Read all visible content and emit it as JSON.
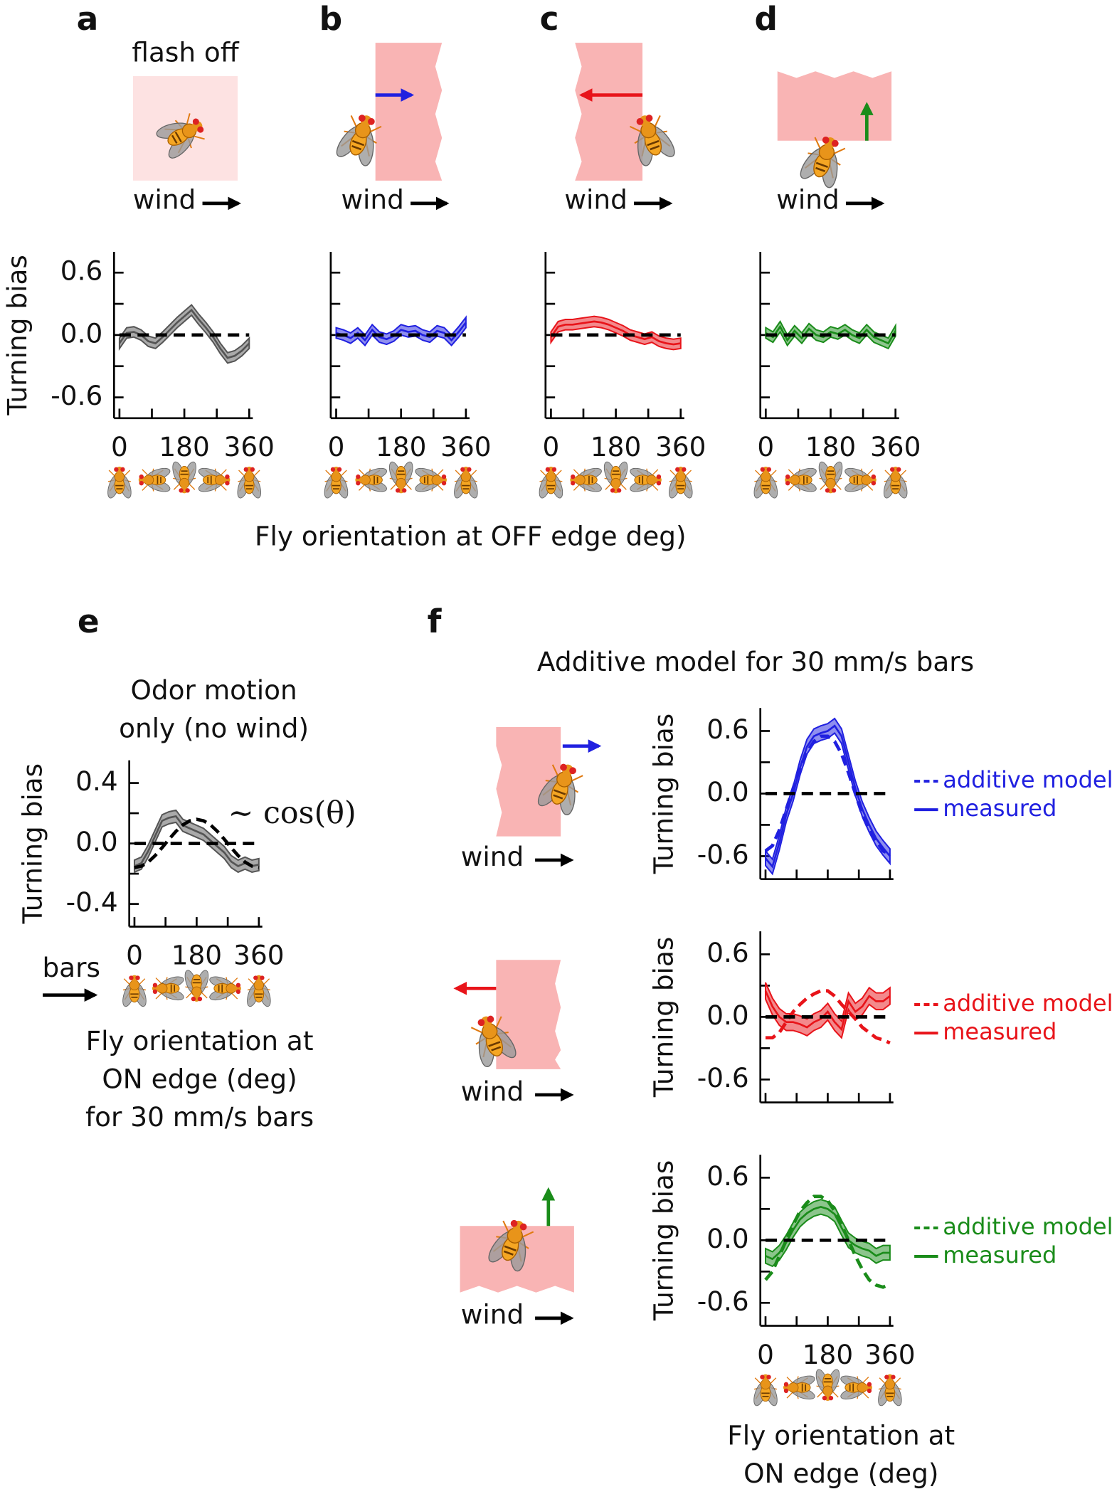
{
  "figure_xlabel": "Fly orientation at OFF edge deg)",
  "chart_data": [
    {
      "type": "line",
      "panel": "a",
      "stimulus_label": "flash off",
      "wind_label": "wind",
      "ylabel": "Turning bias",
      "x": [
        0,
        20,
        40,
        60,
        80,
        100,
        120,
        140,
        160,
        180,
        200,
        220,
        240,
        260,
        280,
        300,
        320,
        340,
        360
      ],
      "xlim": [
        -15,
        370
      ],
      "ylim": [
        -0.8,
        0.8
      ],
      "xticks": [
        0,
        180,
        360
      ],
      "xminor": [
        90,
        270
      ],
      "yticks": [
        0.6,
        {
          "value": 0,
          "label": "0.0"
        },
        -0.6
      ],
      "yminor": [
        0.3,
        -0.3
      ],
      "reference_line": 0,
      "icons": true,
      "series": [
        {
          "color": "#555555",
          "linestyle": "solid",
          "error": 0.05,
          "values": [
            -0.08,
            0.02,
            0.03,
            0.0,
            -0.06,
            -0.08,
            -0.02,
            0.05,
            0.12,
            0.18,
            0.24,
            0.15,
            0.07,
            -0.02,
            -0.13,
            -0.22,
            -0.2,
            -0.15,
            -0.08
          ]
        }
      ]
    },
    {
      "type": "line",
      "panel": "b",
      "wind_label": "wind",
      "x": [
        0,
        20,
        40,
        60,
        80,
        100,
        120,
        140,
        160,
        180,
        200,
        220,
        240,
        260,
        280,
        300,
        320,
        340,
        360
      ],
      "xlim": [
        -15,
        370
      ],
      "ylim": [
        -0.8,
        0.8
      ],
      "xticks": [
        0,
        180,
        360
      ],
      "xminor": [
        90,
        270
      ],
      "yticks": [
        0.6,
        {
          "value": 0,
          "label": "0.0"
        },
        -0.6
      ],
      "yminor": [
        0.3,
        -0.3
      ],
      "ytick_labels": false,
      "reference_line": 0,
      "icons": true,
      "series": [
        {
          "color": "#2020e0",
          "linestyle": "solid",
          "error": 0.05,
          "values": [
            0.02,
            0.0,
            -0.03,
            0.02,
            -0.05,
            0.05,
            -0.02,
            -0.04,
            -0.01,
            0.05,
            0.03,
            0.04,
            0.0,
            -0.02,
            0.04,
            0.02,
            -0.05,
            0.03,
            0.12
          ]
        }
      ]
    },
    {
      "type": "line",
      "panel": "c",
      "wind_label": "wind",
      "x": [
        0,
        20,
        40,
        60,
        80,
        100,
        120,
        140,
        160,
        180,
        200,
        220,
        240,
        260,
        280,
        300,
        320,
        340,
        360
      ],
      "xlim": [
        -15,
        370
      ],
      "ylim": [
        -0.8,
        0.8
      ],
      "xticks": [
        0,
        180,
        360
      ],
      "xminor": [
        90,
        270
      ],
      "yticks": [
        0.6,
        {
          "value": 0,
          "label": "0.0"
        },
        -0.6
      ],
      "yminor": [
        0.3,
        -0.3
      ],
      "ytick_labels": false,
      "reference_line": 0,
      "icons": true,
      "series": [
        {
          "color": "#e8141a",
          "linestyle": "solid",
          "error": 0.05,
          "values": [
            -0.02,
            0.08,
            0.1,
            0.1,
            0.11,
            0.12,
            0.13,
            0.12,
            0.1,
            0.07,
            0.04,
            0.0,
            -0.02,
            -0.04,
            -0.02,
            -0.06,
            -0.08,
            -0.09,
            -0.08
          ]
        }
      ]
    },
    {
      "type": "line",
      "panel": "d",
      "wind_label": "wind",
      "x": [
        0,
        20,
        40,
        60,
        80,
        100,
        120,
        140,
        160,
        180,
        200,
        220,
        240,
        260,
        280,
        300,
        320,
        340,
        360
      ],
      "xlim": [
        -15,
        370
      ],
      "ylim": [
        -0.8,
        0.8
      ],
      "xticks": [
        0,
        180,
        360
      ],
      "xminor": [
        90,
        270
      ],
      "yticks": [
        0.6,
        {
          "value": 0,
          "label": "0.0"
        },
        -0.6
      ],
      "yminor": [
        0.3,
        -0.3
      ],
      "ytick_labels": false,
      "reference_line": 0,
      "icons": true,
      "series": [
        {
          "color": "#1a8c1a",
          "linestyle": "solid",
          "error": 0.05,
          "values": [
            0.02,
            -0.02,
            0.08,
            -0.05,
            0.04,
            -0.03,
            0.06,
            0.0,
            -0.02,
            0.03,
            0.01,
            0.05,
            0.0,
            -0.03,
            0.05,
            -0.02,
            -0.05,
            -0.08,
            0.04
          ]
        }
      ]
    },
    {
      "type": "line",
      "panel": "e",
      "title": [
        "Odor motion",
        "only (no wind)"
      ],
      "annotation": "∼ cos(θ)",
      "stimulus_label": "bars",
      "ylabel": "Turning bias",
      "xlabel": [
        "Fly orientation at",
        "ON edge (deg)",
        "for 30 mm/s bars"
      ],
      "x": [
        0,
        20,
        40,
        60,
        80,
        100,
        120,
        140,
        160,
        180,
        200,
        220,
        240,
        260,
        280,
        300,
        320,
        340,
        360
      ],
      "xlim": [
        -15,
        370
      ],
      "ylim": [
        -0.55,
        0.55
      ],
      "xticks": [
        0,
        180,
        360
      ],
      "xminor": [
        90,
        270
      ],
      "yticks": [
        0.4,
        {
          "value": 0,
          "label": "0.0"
        },
        -0.4
      ],
      "yminor": [
        0.2,
        -0.2
      ],
      "reference_line": 0,
      "icons": true,
      "series": [
        {
          "color": "#555555",
          "linestyle": "solid",
          "error": 0.04,
          "values": [
            -0.15,
            -0.13,
            -0.05,
            0.05,
            0.15,
            0.17,
            0.18,
            0.12,
            0.1,
            0.08,
            0.06,
            0.02,
            -0.02,
            -0.06,
            -0.12,
            -0.15,
            -0.13,
            -0.15,
            -0.14
          ]
        },
        {
          "color": "#000000",
          "linestyle": "dashed",
          "values": [
            -0.16,
            -0.15,
            -0.123,
            -0.08,
            -0.028,
            0.028,
            0.08,
            0.123,
            0.15,
            0.16,
            0.15,
            0.123,
            0.08,
            0.028,
            -0.028,
            -0.08,
            -0.123,
            -0.15,
            -0.16
          ]
        }
      ]
    },
    {
      "type": "line",
      "panel": "f",
      "title": "Additive model for 30 mm/s bars",
      "ylabel": "Turning bias",
      "wind_label": "wind",
      "x": [
        0,
        20,
        40,
        60,
        80,
        100,
        120,
        140,
        160,
        180,
        200,
        220,
        240,
        260,
        280,
        300,
        320,
        340,
        360
      ],
      "xlim": [
        -15,
        370
      ],
      "ylim": [
        -0.82,
        0.82
      ],
      "xticks": [
        0,
        180,
        360
      ],
      "xminor": [
        90,
        270
      ],
      "xtick_labels": false,
      "yticks": [
        0.6,
        {
          "value": 0,
          "label": "0.0"
        },
        -0.6
      ],
      "yminor": [
        0.3,
        -0.3
      ],
      "reference_line": 0,
      "series": [
        {
          "name": "additive model",
          "color": "#2020e0",
          "linestyle": "dashed",
          "values": [
            -0.55,
            -0.5,
            -0.35,
            -0.15,
            0.05,
            0.25,
            0.4,
            0.5,
            0.55,
            0.55,
            0.5,
            0.38,
            0.2,
            0.0,
            -0.2,
            -0.35,
            -0.45,
            -0.55,
            -0.58
          ]
        },
        {
          "name": "measured",
          "color": "#2020e0",
          "linestyle": "solid",
          "error": 0.07,
          "values": [
            -0.62,
            -0.7,
            -0.47,
            -0.2,
            0.0,
            0.25,
            0.45,
            0.55,
            0.58,
            0.6,
            0.65,
            0.55,
            0.3,
            0.05,
            -0.15,
            -0.3,
            -0.43,
            -0.52,
            -0.6
          ]
        }
      ]
    },
    {
      "type": "line",
      "ylabel": "Turning bias",
      "wind_label": "wind",
      "x": [
        0,
        20,
        40,
        60,
        80,
        100,
        120,
        140,
        160,
        180,
        200,
        220,
        240,
        260,
        280,
        300,
        320,
        340,
        360
      ],
      "xlim": [
        -15,
        370
      ],
      "ylim": [
        -0.82,
        0.82
      ],
      "xticks": [
        0,
        180,
        360
      ],
      "xminor": [
        90,
        270
      ],
      "xtick_labels": false,
      "yticks": [
        0.6,
        {
          "value": 0,
          "label": "0.0"
        },
        -0.6
      ],
      "yminor": [
        0.3,
        -0.3
      ],
      "reference_line": 0,
      "series": [
        {
          "name": "additive model",
          "color": "#e8141a",
          "linestyle": "dashed",
          "values": [
            -0.2,
            -0.2,
            -0.15,
            -0.05,
            0.05,
            0.12,
            0.18,
            0.22,
            0.25,
            0.25,
            0.2,
            0.12,
            0.05,
            -0.02,
            -0.1,
            -0.15,
            -0.2,
            -0.22,
            -0.25
          ]
        },
        {
          "name": "measured",
          "color": "#e8141a",
          "linestyle": "solid",
          "error": 0.08,
          "values": [
            0.25,
            0.1,
            0.0,
            -0.05,
            -0.05,
            -0.07,
            -0.1,
            -0.05,
            -0.02,
            0.05,
            -0.05,
            -0.12,
            0.15,
            0.05,
            0.1,
            0.2,
            0.15,
            0.15,
            0.2
          ]
        }
      ]
    },
    {
      "type": "line",
      "ylabel": "Turning bias",
      "wind_label": "wind",
      "xlabel": [
        "Fly orientation at",
        "ON edge (deg)"
      ],
      "x": [
        0,
        20,
        40,
        60,
        80,
        100,
        120,
        140,
        160,
        180,
        200,
        220,
        240,
        260,
        280,
        300,
        320,
        340,
        360
      ],
      "xlim": [
        -15,
        370
      ],
      "ylim": [
        -0.82,
        0.82
      ],
      "xticks": [
        0,
        180,
        360
      ],
      "xminor": [
        90,
        270
      ],
      "yticks": [
        0.6,
        {
          "value": 0,
          "label": "0.0"
        },
        -0.6
      ],
      "yminor": [
        0.3,
        -0.3
      ],
      "reference_line": 0,
      "icons": true,
      "series": [
        {
          "name": "additive model",
          "color": "#1a8c1a",
          "linestyle": "dashed",
          "values": [
            -0.38,
            -0.3,
            -0.15,
            0.0,
            0.15,
            0.28,
            0.36,
            0.42,
            0.42,
            0.38,
            0.28,
            0.15,
            0.0,
            -0.15,
            -0.28,
            -0.38,
            -0.43,
            -0.45,
            -0.42
          ]
        },
        {
          "name": "measured",
          "color": "#1a8c1a",
          "linestyle": "solid",
          "error": 0.07,
          "values": [
            -0.15,
            -0.18,
            -0.12,
            -0.02,
            0.1,
            0.2,
            0.26,
            0.3,
            0.32,
            0.3,
            0.25,
            0.12,
            0.0,
            -0.05,
            -0.08,
            -0.1,
            -0.15,
            -0.12,
            -0.12
          ]
        }
      ]
    }
  ]
}
